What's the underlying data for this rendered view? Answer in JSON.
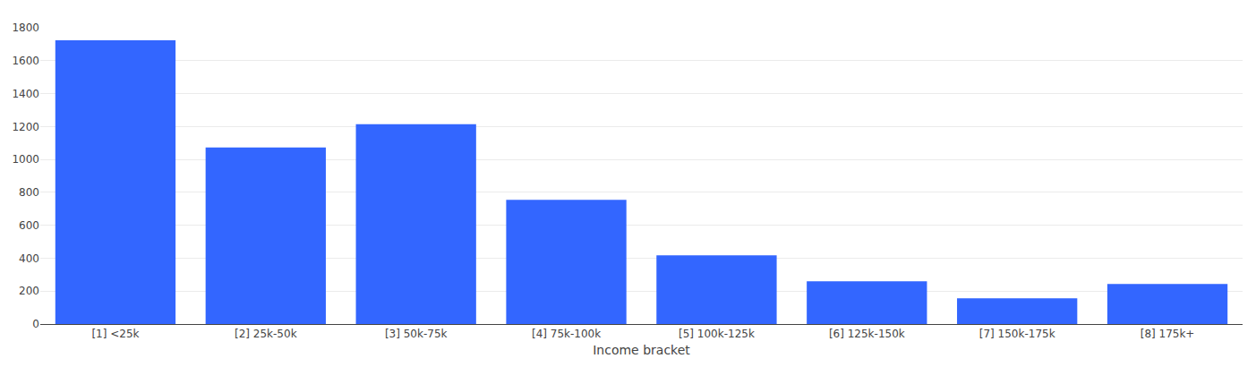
{
  "chart_data": {
    "type": "bar",
    "x_label": "Income bracket",
    "categories": [
      "[1] <25k",
      "[2] 25k-50k",
      "[3] 50k-75k",
      "[4] 75k-100k",
      "[5] 100k-125k",
      "[6] 125k-150k",
      "[7] 150k-175k",
      "[8] 175k+"
    ],
    "values": [
      1724,
      1073,
      1214,
      754,
      417,
      260,
      157,
      244
    ],
    "color": "#3366ff",
    "ylim": [
      0,
      1800
    ],
    "yticks": [
      0,
      200,
      400,
      600,
      800,
      1000,
      1200,
      1400,
      1600,
      1800
    ],
    "grid": true
  }
}
